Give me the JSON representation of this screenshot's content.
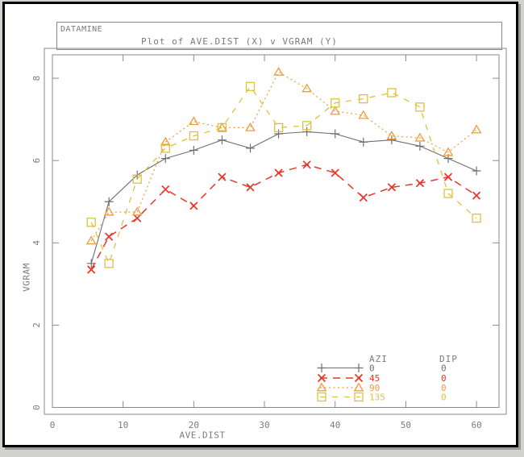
{
  "window": {
    "app_label": "DATAMINE",
    "title": "Plot of AVE.DIST (X) v VGRAM (Y)"
  },
  "axes": {
    "x": {
      "label": "AVE.DIST",
      "ticks": [
        0,
        10,
        20,
        30,
        40,
        50,
        60
      ]
    },
    "y": {
      "label": "VGRAM",
      "ticks": [
        0,
        2,
        4,
        6,
        8
      ]
    }
  },
  "legend": {
    "col1_header": "AZI",
    "col2_header": "DIP",
    "rows": [
      {
        "azi": "0",
        "dip": "0"
      },
      {
        "azi": "45",
        "dip": "0"
      },
      {
        "azi": "90",
        "dip": "0"
      },
      {
        "azi": "135",
        "dip": "0"
      }
    ]
  },
  "colors": {
    "frame_gray": "#8a8a8a",
    "text_gray": "#7b7b7b",
    "series_gray": "#6f6f6f",
    "series_red": "#e8362a",
    "series_orange": "#f09a40",
    "series_yellow": "#dcc23d"
  },
  "chart_data": {
    "type": "line",
    "title": "Plot of AVE.DIST (X) v VGRAM (Y)",
    "xlabel": "AVE.DIST",
    "ylabel": "VGRAM",
    "xlim": [
      0,
      63.2
    ],
    "ylim": [
      0,
      8.57
    ],
    "grid": false,
    "legend_position": "bottom-right-inside",
    "x": [
      5.5,
      8,
      12,
      16,
      20,
      24,
      28,
      32,
      36,
      40,
      44,
      48,
      52,
      56,
      60
    ],
    "series": [
      {
        "name": "AZI 0 DIP 0",
        "azi": "0",
        "dip": "0",
        "color": "#6f6f6f",
        "marker": "plus",
        "line": "solid",
        "values": [
          3.5,
          5.0,
          5.65,
          6.05,
          6.25,
          6.5,
          6.3,
          6.65,
          6.7,
          6.65,
          6.45,
          6.5,
          6.35,
          6.05,
          5.75
        ]
      },
      {
        "name": "AZI 45 DIP 0",
        "azi": "45",
        "dip": "0",
        "color": "#e8362a",
        "marker": "cross",
        "line": "dashed",
        "values": [
          3.35,
          4.15,
          4.6,
          5.3,
          4.9,
          5.6,
          5.35,
          5.7,
          5.9,
          5.7,
          5.1,
          5.35,
          5.45,
          5.6,
          5.15
        ]
      },
      {
        "name": "AZI 90 DIP 0",
        "azi": "90",
        "dip": "0",
        "color": "#f09a40",
        "marker": "triangle",
        "line": "dotted",
        "values": [
          4.05,
          4.75,
          4.75,
          6.45,
          6.95,
          6.8,
          6.8,
          8.15,
          7.75,
          7.2,
          7.1,
          6.6,
          6.55,
          6.2,
          6.75
        ]
      },
      {
        "name": "AZI 135 DIP 0",
        "azi": "135",
        "dip": "0",
        "color": "#dcc23d",
        "marker": "square",
        "line": "longdash",
        "values": [
          4.5,
          3.5,
          5.55,
          6.3,
          6.6,
          6.8,
          7.8,
          6.8,
          6.85,
          7.4,
          7.5,
          7.65,
          7.3,
          5.2,
          4.6
        ]
      }
    ]
  }
}
